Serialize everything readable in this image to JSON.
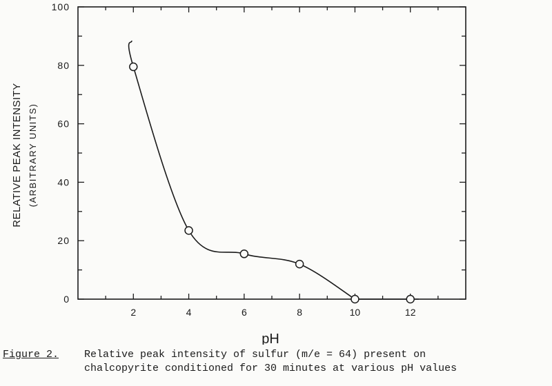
{
  "chart_data": {
    "type": "line",
    "title": "",
    "xlabel": "pH",
    "ylabel": "RELATIVE PEAK INTENSITY",
    "ylabel_sub": "(ARBITRARY UNITS)",
    "xlim": [
      0,
      14
    ],
    "ylim": [
      0,
      100
    ],
    "x_ticks": [
      2,
      4,
      6,
      8,
      10,
      12
    ],
    "y_ticks": [
      0,
      20,
      40,
      60,
      80,
      100
    ],
    "grid": false,
    "series": [
      {
        "name": "",
        "points": [
          {
            "x": 2,
            "y": 79.5
          },
          {
            "x": 4,
            "y": 23.5
          },
          {
            "x": 6,
            "y": 15.5
          },
          {
            "x": 8,
            "y": 12
          },
          {
            "x": 10,
            "y": 0
          },
          {
            "x": 12,
            "y": 0
          }
        ]
      }
    ]
  },
  "caption": {
    "label": "Figure 2.",
    "line1": "Relative peak intensity of sulfur (m/e = 64) present on",
    "line2": "chalcopyrite conditioned for 30 minutes at various pH values"
  }
}
